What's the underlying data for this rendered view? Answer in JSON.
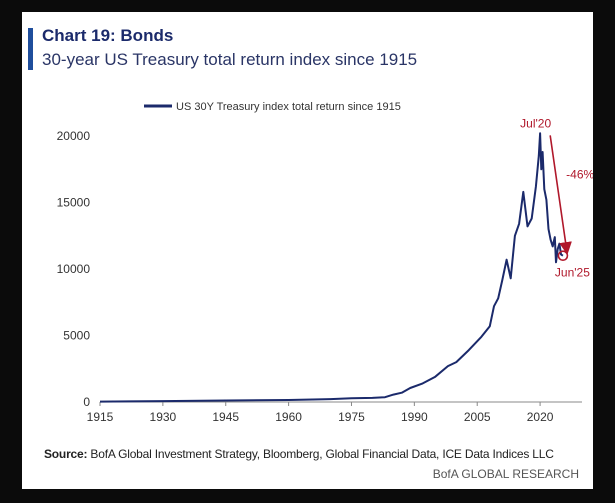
{
  "header": {
    "title": "Chart 19: Bonds",
    "subtitle": "30-year US Treasury total return index since 1915"
  },
  "footer": {
    "source_label": "Source:",
    "source_text": "BofA Global Investment Strategy, Bloomberg, Global Financial Data, ICE Data Indices LLC",
    "brand": "BofA GLOBAL RESEARCH"
  },
  "colors": {
    "series": "#1b2a6b",
    "annotation": "#b0182b",
    "accent": "#1f4e9c"
  },
  "chart_data": {
    "type": "line",
    "title": "Chart 19: Bonds",
    "subtitle": "30-year US Treasury total return index since 1915",
    "xlabel": "",
    "ylabel": "",
    "xlim": [
      1915,
      2030
    ],
    "ylim": [
      0,
      20000
    ],
    "xticks": [
      1915,
      1930,
      1945,
      1960,
      1975,
      1990,
      2005,
      2020
    ],
    "yticks": [
      0,
      5000,
      10000,
      15000,
      20000
    ],
    "grid": false,
    "legend": "top-left",
    "series": [
      {
        "name": "US 30Y Treasury index total return since 1915",
        "x": [
          1915,
          1930,
          1945,
          1960,
          1970,
          1975,
          1980,
          1983,
          1985,
          1987,
          1989,
          1992,
          1995,
          1998,
          2000,
          2003,
          2006,
          2008,
          2009,
          2010,
          2011,
          2012,
          2013,
          2014,
          2015,
          2016,
          2017,
          2018,
          2019,
          2019.7,
          2020.0,
          2020.3,
          2020.6,
          2021.0,
          2021.5,
          2022.0,
          2022.5,
          2023.0,
          2023.5,
          2023.8,
          2024.2,
          2024.6,
          2025.0,
          2025.45
        ],
        "y": [
          30,
          70,
          110,
          150,
          220,
          280,
          310,
          360,
          560,
          700,
          1050,
          1400,
          1900,
          2700,
          3000,
          3900,
          4900,
          5700,
          7200,
          7800,
          9200,
          10700,
          9300,
          12500,
          13400,
          15800,
          13200,
          13800,
          16200,
          18500,
          20200,
          17500,
          18800,
          16000,
          15200,
          13000,
          12200,
          11700,
          12400,
          10500,
          11500,
          11900,
          11100,
          11000
        ]
      }
    ],
    "annotations": [
      {
        "label": "Jul'20",
        "x": 2020.5,
        "y": 20200
      },
      {
        "label": "-46%"
      },
      {
        "label": "Jun'25",
        "x": 2025.45,
        "y": 11000
      }
    ]
  }
}
